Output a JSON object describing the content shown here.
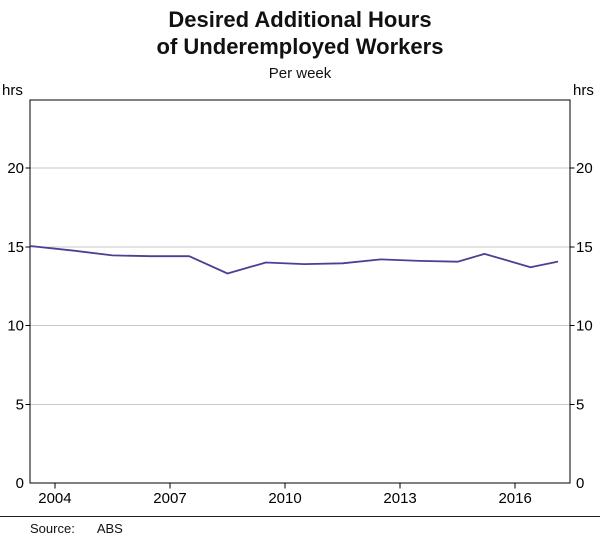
{
  "title": {
    "line1": "Desired Additional Hours",
    "line2": "of Underemployed Workers"
  },
  "subtitle": "Per week",
  "footer": {
    "source_label": "Source:",
    "source_value": "ABS"
  },
  "chart_data": {
    "type": "line",
    "title": "Desired Additional Hours of Underemployed Workers",
    "subtitle": "Per week",
    "unit_label": "hrs",
    "xlabel": "",
    "ylabel": "hrs",
    "x": [
      2003.35,
      2004.5,
      2005.5,
      2006.5,
      2007.5,
      2008.5,
      2009.5,
      2010.5,
      2011.5,
      2012.5,
      2013.5,
      2014.5,
      2015.2,
      2016.4,
      2017.1
    ],
    "series": [
      {
        "name": "Desired additional hours of underemployed workers",
        "values": [
          15.05,
          14.75,
          14.45,
          14.4,
          14.4,
          13.3,
          14.0,
          13.9,
          13.95,
          14.2,
          14.1,
          14.05,
          14.55,
          13.7,
          14.05
        ]
      }
    ],
    "x_ticks": [
      2004,
      2007,
      2010,
      2013,
      2016
    ],
    "y_ticks": [
      0,
      5,
      10,
      15,
      20
    ],
    "xlim": [
      2003.35,
      2017.43
    ],
    "ylim": [
      0,
      24.32
    ],
    "grid": "horizontal",
    "legend": "none",
    "source": "ABS",
    "colors": {
      "line": "#4e3f94",
      "grid": "#c9c9c9",
      "axis": "#000000"
    }
  }
}
